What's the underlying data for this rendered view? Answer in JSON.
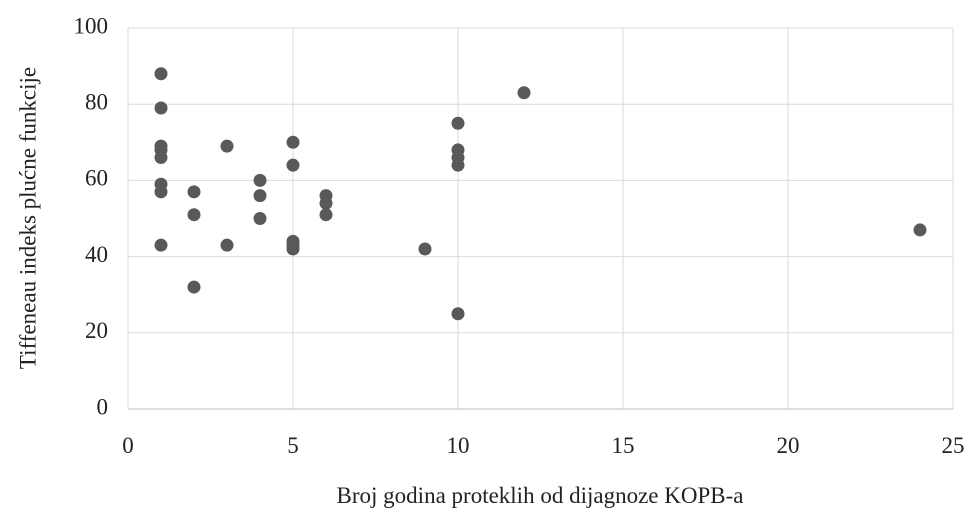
{
  "chart_data": {
    "type": "scatter",
    "x_label": "Broj godina proteklih od dijagnoze KOPB-a",
    "y_label": "Tiffeneau indeks plućne funkcije",
    "x": [
      1,
      1,
      1,
      1,
      1,
      1,
      1,
      1,
      2,
      2,
      2,
      3,
      3,
      4,
      4,
      4,
      5,
      5,
      5,
      5,
      5,
      6,
      6,
      6,
      9,
      10,
      10,
      10,
      10,
      10,
      12,
      24
    ],
    "values": [
      88,
      79,
      69,
      68,
      66,
      59,
      57,
      43,
      57,
      51,
      32,
      69,
      43,
      60,
      56,
      50,
      70,
      64,
      44,
      43,
      42,
      56,
      54,
      51,
      42,
      75,
      68,
      66,
      64,
      25,
      83,
      47
    ],
    "color": "#595959",
    "xlim": [
      0,
      25
    ],
    "xticks": [
      0,
      5,
      10,
      15,
      20,
      25
    ],
    "ylim": [
      0,
      100
    ],
    "yticks": [
      0,
      20,
      40,
      60,
      80,
      100
    ],
    "grid": true
  }
}
